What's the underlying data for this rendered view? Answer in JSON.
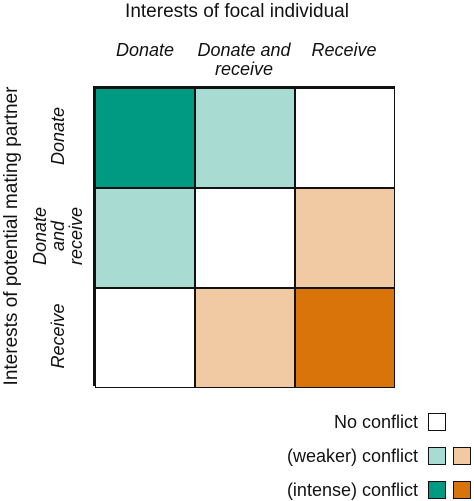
{
  "title_top": "Interests of focal individual",
  "title_left": "Interests of potential mating partner",
  "columns": [
    "Donate",
    "Donate and receive",
    "Receive"
  ],
  "rows": [
    "Donate",
    "Donate and receive",
    "Receive"
  ],
  "colors": {
    "none": "#ffffff",
    "weak_teal": "#a8dbd1",
    "intense_teal": "#009a82",
    "weak_orange": "#f1c9a3",
    "intense_orange": "#d9740a"
  },
  "matrix": [
    [
      "intense_teal",
      "weak_teal",
      "none"
    ],
    [
      "weak_teal",
      "none",
      "weak_orange"
    ],
    [
      "none",
      "weak_orange",
      "intense_orange"
    ]
  ],
  "legend": {
    "no_conflict": "No conflict",
    "weaker_conflict": "(weaker) conflict",
    "intense_conflict": "(intense) conflict"
  }
}
